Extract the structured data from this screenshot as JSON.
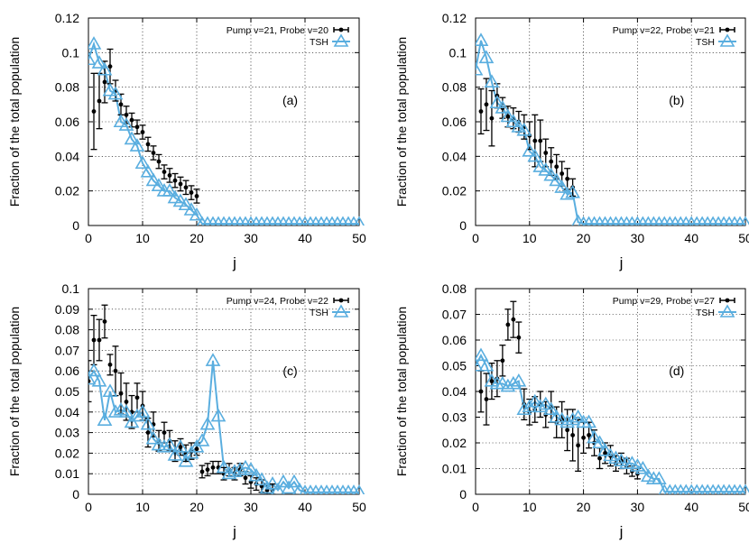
{
  "chart_data": [
    {
      "type": "scatter",
      "panel_label": "(a)",
      "xlabel": "j",
      "ylabel": "Fraction of the total population",
      "xlim": [
        0,
        50
      ],
      "ylim": [
        0,
        0.12
      ],
      "xticks": [
        0,
        10,
        20,
        30,
        40,
        50
      ],
      "yticks": [
        0,
        0.02,
        0.04,
        0.06,
        0.08,
        0.1,
        0.12
      ],
      "ytick_labels": [
        "0",
        "0.02",
        "0.04",
        "0.06",
        "0.08",
        "0.1",
        "0.12"
      ],
      "grid": true,
      "legend_position": "top-right",
      "series": [
        {
          "name": "Pump v=21, Probe v=20",
          "style": "points-with-errorbars",
          "color": "#000000",
          "x": [
            1,
            2,
            3,
            4,
            5,
            6,
            7,
            8,
            9,
            10,
            11,
            12,
            13,
            14,
            15,
            16,
            17,
            18,
            19,
            20
          ],
          "y": [
            0.066,
            0.072,
            0.083,
            0.092,
            0.078,
            0.07,
            0.064,
            0.061,
            0.057,
            0.054,
            0.047,
            0.042,
            0.037,
            0.031,
            0.029,
            0.026,
            0.024,
            0.022,
            0.019,
            0.017
          ],
          "err": [
            0.022,
            0.016,
            0.012,
            0.01,
            0.006,
            0.006,
            0.005,
            0.004,
            0.004,
            0.004,
            0.004,
            0.004,
            0.004,
            0.004,
            0.004,
            0.004,
            0.004,
            0.004,
            0.004,
            0.004
          ]
        },
        {
          "name": "TSH",
          "style": "line-triangles",
          "color": "#5aaedf",
          "x": [
            0,
            1,
            2,
            3,
            4,
            5,
            6,
            7,
            8,
            9,
            10,
            11,
            12,
            13,
            14,
            15,
            16,
            17,
            18,
            19,
            20,
            21,
            22,
            23,
            24,
            25,
            26,
            27,
            28,
            29,
            30,
            31,
            32,
            33,
            34,
            35,
            36,
            37,
            38,
            39,
            40,
            41,
            42,
            43,
            44,
            45,
            46,
            47,
            48,
            49,
            50
          ],
          "y": [
            0.096,
            0.105,
            0.094,
            0.09,
            0.078,
            0.076,
            0.06,
            0.058,
            0.05,
            0.046,
            0.036,
            0.031,
            0.026,
            0.023,
            0.02,
            0.02,
            0.016,
            0.014,
            0.012,
            0.009,
            0.006,
            0.001,
            0.001,
            0.001,
            0.001,
            0.001,
            0.001,
            0.001,
            0.001,
            0.001,
            0.001,
            0.001,
            0.001,
            0.001,
            0.001,
            0.001,
            0.001,
            0.001,
            0.001,
            0.001,
            0.001,
            0.001,
            0.001,
            0.001,
            0.001,
            0.001,
            0.001,
            0.001,
            0.001,
            0.001,
            0.001
          ]
        }
      ]
    },
    {
      "type": "scatter",
      "panel_label": "(b)",
      "xlabel": "j",
      "ylabel": "Fraction of the total population",
      "xlim": [
        0,
        50
      ],
      "ylim": [
        0,
        0.12
      ],
      "xticks": [
        0,
        10,
        20,
        30,
        40,
        50
      ],
      "yticks": [
        0,
        0.02,
        0.04,
        0.06,
        0.08,
        0.1,
        0.12
      ],
      "ytick_labels": [
        "0",
        "0.02",
        "0.04",
        "0.06",
        "0.08",
        "0.1",
        "0.12"
      ],
      "grid": true,
      "legend_position": "top-right",
      "series": [
        {
          "name": "Pump v=22, Probe v=21",
          "style": "points-with-errorbars",
          "color": "#000000",
          "x": [
            1,
            2,
            3,
            4,
            5,
            6,
            7,
            8,
            9,
            10,
            11,
            12,
            13,
            14,
            15,
            16,
            17,
            18
          ],
          "y": [
            0.066,
            0.07,
            0.062,
            0.075,
            0.068,
            0.063,
            0.062,
            0.06,
            0.057,
            0.052,
            0.049,
            0.049,
            0.042,
            0.037,
            0.034,
            0.03,
            0.027,
            0.022
          ],
          "err": [
            0.013,
            0.015,
            0.016,
            0.007,
            0.006,
            0.006,
            0.006,
            0.006,
            0.007,
            0.008,
            0.015,
            0.012,
            0.008,
            0.008,
            0.007,
            0.007,
            0.006,
            0.005
          ]
        },
        {
          "name": "TSH",
          "style": "line-triangles",
          "color": "#5aaedf",
          "x": [
            0,
            1,
            2,
            3,
            4,
            5,
            6,
            7,
            8,
            9,
            10,
            11,
            12,
            13,
            14,
            15,
            16,
            17,
            18,
            19,
            20,
            21,
            22,
            23,
            24,
            25,
            26,
            27,
            28,
            29,
            30,
            31,
            32,
            33,
            34,
            35,
            36,
            37,
            38,
            39,
            40,
            41,
            42,
            43,
            44,
            45,
            46,
            47,
            48,
            49,
            50
          ],
          "y": [
            0.09,
            0.107,
            0.097,
            0.083,
            0.071,
            0.068,
            0.063,
            0.06,
            0.057,
            0.055,
            0.043,
            0.04,
            0.034,
            0.032,
            0.029,
            0.026,
            0.022,
            0.018,
            0.019,
            0.002,
            0.001,
            0.001,
            0.001,
            0.001,
            0.001,
            0.001,
            0.001,
            0.001,
            0.001,
            0.001,
            0.001,
            0.001,
            0.001,
            0.001,
            0.001,
            0.001,
            0.001,
            0.001,
            0.001,
            0.001,
            0.001,
            0.001,
            0.001,
            0.001,
            0.001,
            0.001,
            0.001,
            0.001,
            0.001,
            0.001,
            0.001
          ]
        }
      ]
    },
    {
      "type": "scatter",
      "panel_label": "(c)",
      "xlabel": "j",
      "ylabel": "Fraction of the total population",
      "xlim": [
        0,
        50
      ],
      "ylim": [
        0,
        0.1
      ],
      "xticks": [
        0,
        10,
        20,
        30,
        40,
        50
      ],
      "yticks": [
        0,
        0.01,
        0.02,
        0.03,
        0.04,
        0.05,
        0.06,
        0.07,
        0.08,
        0.09,
        0.1
      ],
      "ytick_labels": [
        "0",
        "0.01",
        "0.02",
        "0.03",
        "0.04",
        "0.05",
        "0.06",
        "0.07",
        "0.08",
        "0.09",
        "0.1"
      ],
      "grid": true,
      "legend_position": "top-right",
      "series": [
        {
          "name": "Pump v=24, Probe v=22",
          "style": "points-with-errorbars",
          "color": "#000000",
          "x": [
            0,
            1,
            2,
            3,
            4,
            5,
            6,
            7,
            8,
            9,
            10,
            11,
            12,
            13,
            14,
            15,
            16,
            17,
            18,
            19,
            20,
            21,
            22,
            23,
            24,
            25,
            26,
            27,
            28,
            29,
            30,
            31,
            32,
            33,
            34
          ],
          "y": [
            0.055,
            0.075,
            0.075,
            0.084,
            0.063,
            0.06,
            0.049,
            0.045,
            0.04,
            0.047,
            0.043,
            0.03,
            0.034,
            0.026,
            0.03,
            0.026,
            0.021,
            0.023,
            0.02,
            0.021,
            0.022,
            0.011,
            0.012,
            0.013,
            0.013,
            0.01,
            0.012,
            0.01,
            0.012,
            0.008,
            0.006,
            0.005,
            0.004,
            0.002,
            0.002
          ],
          "err": [
            0.01,
            0.012,
            0.01,
            0.008,
            0.005,
            0.012,
            0.01,
            0.009,
            0.008,
            0.007,
            0.007,
            0.007,
            0.006,
            0.005,
            0.005,
            0.005,
            0.005,
            0.004,
            0.004,
            0.004,
            0.003,
            0.003,
            0.003,
            0.003,
            0.003,
            0.003,
            0.003,
            0.003,
            0.003,
            0.003,
            0.003,
            0.003,
            0.003,
            0.003,
            0.003
          ]
        },
        {
          "name": "TSH",
          "style": "line-triangles",
          "color": "#5aaedf",
          "x": [
            0,
            1,
            2,
            3,
            4,
            5,
            6,
            7,
            8,
            9,
            10,
            11,
            12,
            13,
            14,
            15,
            16,
            17,
            18,
            19,
            20,
            21,
            22,
            23,
            24,
            25,
            26,
            27,
            28,
            29,
            30,
            31,
            32,
            33,
            34,
            35,
            36,
            37,
            38,
            39,
            40,
            41,
            42,
            43,
            44,
            45,
            46,
            47,
            48,
            49,
            50
          ],
          "y": [
            0.056,
            0.06,
            0.055,
            0.036,
            0.05,
            0.04,
            0.041,
            0.04,
            0.035,
            0.038,
            0.04,
            0.034,
            0.027,
            0.024,
            0.023,
            0.024,
            0.019,
            0.023,
            0.016,
            0.02,
            0.023,
            0.026,
            0.034,
            0.065,
            0.038,
            0.013,
            0.01,
            0.011,
            0.012,
            0.013,
            0.012,
            0.009,
            0.007,
            0.003,
            0.005,
            0.002,
            0.006,
            0.003,
            0.006,
            0.002,
            0.001,
            0.001,
            0.001,
            0.001,
            0.001,
            0.001,
            0.001,
            0.001,
            0.001,
            0.001,
            0.001
          ]
        }
      ]
    },
    {
      "type": "scatter",
      "panel_label": "(d)",
      "xlabel": "j",
      "ylabel": "Fraction of the total population",
      "xlim": [
        0,
        50
      ],
      "ylim": [
        0,
        0.08
      ],
      "xticks": [
        0,
        10,
        20,
        30,
        40,
        50
      ],
      "yticks": [
        0,
        0.01,
        0.02,
        0.03,
        0.04,
        0.05,
        0.06,
        0.07,
        0.08
      ],
      "ytick_labels": [
        "0",
        "0.01",
        "0.02",
        "0.03",
        "0.04",
        "0.05",
        "0.06",
        "0.07",
        "0.08"
      ],
      "grid": true,
      "legend_position": "top-right",
      "series": [
        {
          "name": "Pump v=29, Probe v=27",
          "style": "points-with-errorbars",
          "color": "#000000",
          "x": [
            1,
            2,
            3,
            4,
            5,
            6,
            7,
            8,
            9,
            10,
            11,
            12,
            13,
            14,
            15,
            16,
            17,
            18,
            19,
            20,
            21,
            22,
            23,
            24,
            25,
            26,
            27,
            28,
            29,
            30
          ],
          "y": [
            0.04,
            0.037,
            0.044,
            0.045,
            0.052,
            0.066,
            0.068,
            0.061,
            0.035,
            0.032,
            0.033,
            0.035,
            0.031,
            0.034,
            0.028,
            0.029,
            0.025,
            0.023,
            0.019,
            0.022,
            0.023,
            0.02,
            0.014,
            0.016,
            0.015,
            0.012,
            0.013,
            0.011,
            0.009,
            0.008
          ],
          "err": [
            0.008,
            0.01,
            0.007,
            0.007,
            0.006,
            0.006,
            0.007,
            0.006,
            0.006,
            0.005,
            0.005,
            0.005,
            0.005,
            0.006,
            0.006,
            0.007,
            0.008,
            0.01,
            0.01,
            0.006,
            0.005,
            0.005,
            0.004,
            0.004,
            0.004,
            0.003,
            0.003,
            0.003,
            0.002,
            0.002
          ]
        },
        {
          "name": "TSH",
          "style": "line-triangles",
          "color": "#5aaedf",
          "x": [
            0,
            1,
            2,
            3,
            4,
            5,
            6,
            7,
            8,
            9,
            10,
            11,
            12,
            13,
            14,
            15,
            16,
            17,
            18,
            19,
            20,
            21,
            22,
            23,
            24,
            25,
            26,
            27,
            28,
            29,
            30,
            31,
            32,
            33,
            34,
            35,
            36,
            37,
            38,
            39,
            40,
            41,
            42,
            43,
            44,
            45,
            46,
            47,
            48,
            49,
            50
          ],
          "y": [
            0.05,
            0.054,
            0.05,
            0.044,
            0.043,
            0.043,
            0.042,
            0.043,
            0.044,
            0.033,
            0.034,
            0.036,
            0.034,
            0.035,
            0.033,
            0.03,
            0.029,
            0.028,
            0.029,
            0.03,
            0.028,
            0.028,
            0.022,
            0.02,
            0.017,
            0.015,
            0.014,
            0.013,
            0.012,
            0.012,
            0.011,
            0.01,
            0.007,
            0.006,
            0.006,
            0.001,
            0.001,
            0.001,
            0.001,
            0.001,
            0.001,
            0.001,
            0.001,
            0.001,
            0.001,
            0.001,
            0.001,
            0.001,
            0.001,
            0.001,
            0.001
          ]
        }
      ]
    }
  ]
}
